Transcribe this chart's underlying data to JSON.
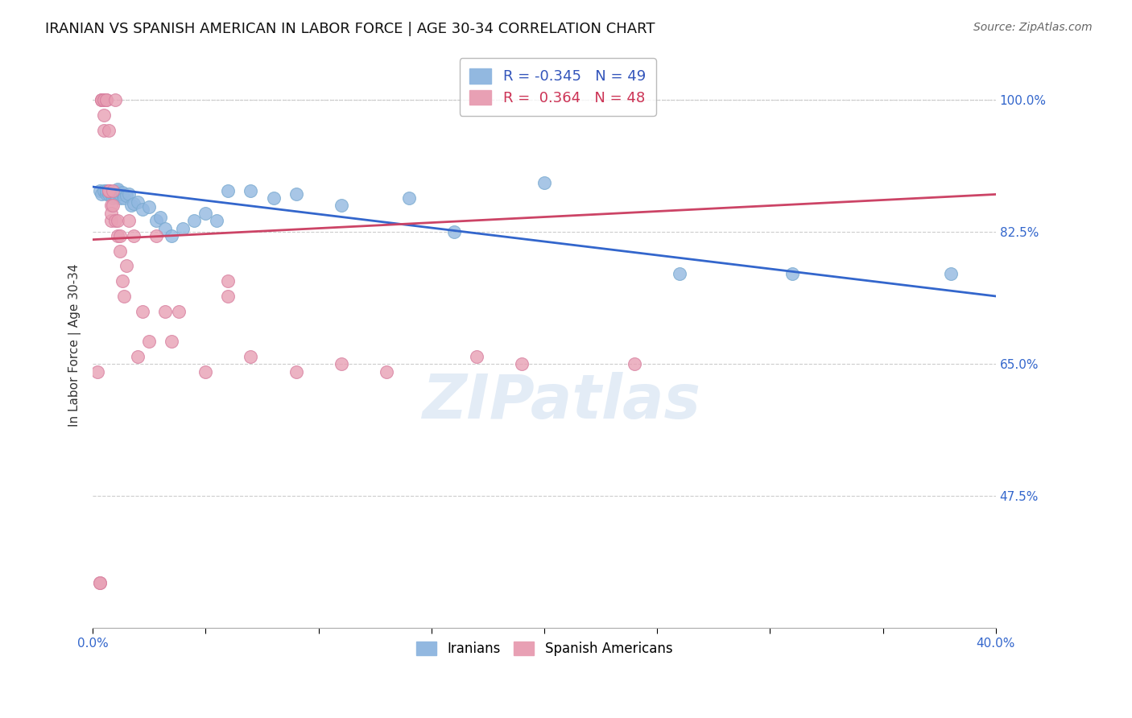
{
  "title": "IRANIAN VS SPANISH AMERICAN IN LABOR FORCE | AGE 30-34 CORRELATION CHART",
  "source": "Source: ZipAtlas.com",
  "ylabel": "In Labor Force | Age 30-34",
  "xlim": [
    0.0,
    0.4
  ],
  "ylim": [
    0.3,
    1.05
  ],
  "yticks": [
    0.475,
    0.65,
    0.825,
    1.0
  ],
  "ytick_labels": [
    "47.5%",
    "65.0%",
    "82.5%",
    "100.0%"
  ],
  "xticks": [
    0.0,
    0.05,
    0.1,
    0.15,
    0.2,
    0.25,
    0.3,
    0.35,
    0.4
  ],
  "xtick_labels": [
    "0.0%",
    "",
    "",
    "",
    "",
    "",
    "",
    "",
    "40.0%"
  ],
  "blue_color": "#92b8e0",
  "pink_color": "#e8a0b4",
  "blue_line_color": "#3366cc",
  "pink_line_color": "#cc4466",
  "legend_R_blue": "-0.345",
  "legend_N_blue": "49",
  "legend_R_pink": "0.364",
  "legend_N_pink": "48",
  "watermark": "ZIPatlas",
  "blue_x": [
    0.003,
    0.004,
    0.005,
    0.005,
    0.006,
    0.006,
    0.007,
    0.007,
    0.008,
    0.008,
    0.009,
    0.009,
    0.009,
    0.01,
    0.01,
    0.01,
    0.011,
    0.011,
    0.012,
    0.012,
    0.013,
    0.013,
    0.014,
    0.015,
    0.016,
    0.017,
    0.018,
    0.02,
    0.022,
    0.025,
    0.028,
    0.03,
    0.032,
    0.035,
    0.04,
    0.045,
    0.05,
    0.055,
    0.06,
    0.07,
    0.08,
    0.09,
    0.11,
    0.14,
    0.16,
    0.2,
    0.26,
    0.31,
    0.38
  ],
  "blue_y": [
    0.875,
    0.878,
    0.88,
    0.882,
    0.87,
    0.875,
    0.878,
    0.88,
    0.875,
    0.876,
    0.872,
    0.875,
    0.878,
    0.87,
    0.872,
    0.874,
    0.871,
    0.873,
    0.869,
    0.871,
    0.87,
    0.872,
    0.869,
    0.868,
    0.866,
    0.865,
    0.863,
    0.86,
    0.858,
    0.855,
    0.853,
    0.85,
    0.848,
    0.845,
    0.84,
    0.835,
    0.83,
    0.825,
    0.82,
    0.815,
    0.81,
    0.805,
    0.8,
    0.785,
    0.78,
    0.77,
    0.76,
    0.75,
    0.74
  ],
  "blue_y_actual": [
    0.88,
    0.875,
    0.88,
    1.0,
    0.875,
    0.88,
    0.875,
    0.88,
    0.875,
    0.878,
    0.875,
    0.87,
    0.875,
    0.872,
    0.875,
    0.875,
    0.88,
    0.882,
    0.87,
    0.875,
    0.876,
    0.878,
    0.87,
    0.873,
    0.875,
    0.86,
    0.863,
    0.865,
    0.855,
    0.858,
    0.84,
    0.845,
    0.83,
    0.82,
    0.83,
    0.84,
    0.85,
    0.84,
    0.88,
    0.88,
    0.87,
    0.875,
    0.86,
    0.87,
    0.825,
    0.89,
    0.77,
    0.77,
    0.77
  ],
  "pink_x": [
    0.002,
    0.003,
    0.003,
    0.004,
    0.004,
    0.004,
    0.005,
    0.005,
    0.005,
    0.005,
    0.006,
    0.006,
    0.007,
    0.007,
    0.007,
    0.008,
    0.008,
    0.008,
    0.009,
    0.009,
    0.01,
    0.01,
    0.011,
    0.011,
    0.012,
    0.012,
    0.013,
    0.014,
    0.015,
    0.016,
    0.018,
    0.02,
    0.022,
    0.025,
    0.028,
    0.032,
    0.035,
    0.038,
    0.05,
    0.06,
    0.07,
    0.09,
    0.11,
    0.13,
    0.17,
    0.19,
    0.24,
    0.06
  ],
  "pink_y_actual": [
    0.64,
    0.36,
    0.36,
    1.0,
    1.0,
    1.0,
    1.0,
    1.0,
    0.98,
    0.96,
    1.0,
    1.0,
    0.96,
    0.88,
    0.88,
    0.86,
    0.84,
    0.85,
    0.86,
    0.88,
    0.84,
    1.0,
    0.84,
    0.82,
    0.8,
    0.82,
    0.76,
    0.74,
    0.78,
    0.84,
    0.82,
    0.66,
    0.72,
    0.68,
    0.82,
    0.72,
    0.68,
    0.72,
    0.64,
    0.74,
    0.66,
    0.64,
    0.65,
    0.64,
    0.66,
    0.65,
    0.65,
    0.76
  ]
}
